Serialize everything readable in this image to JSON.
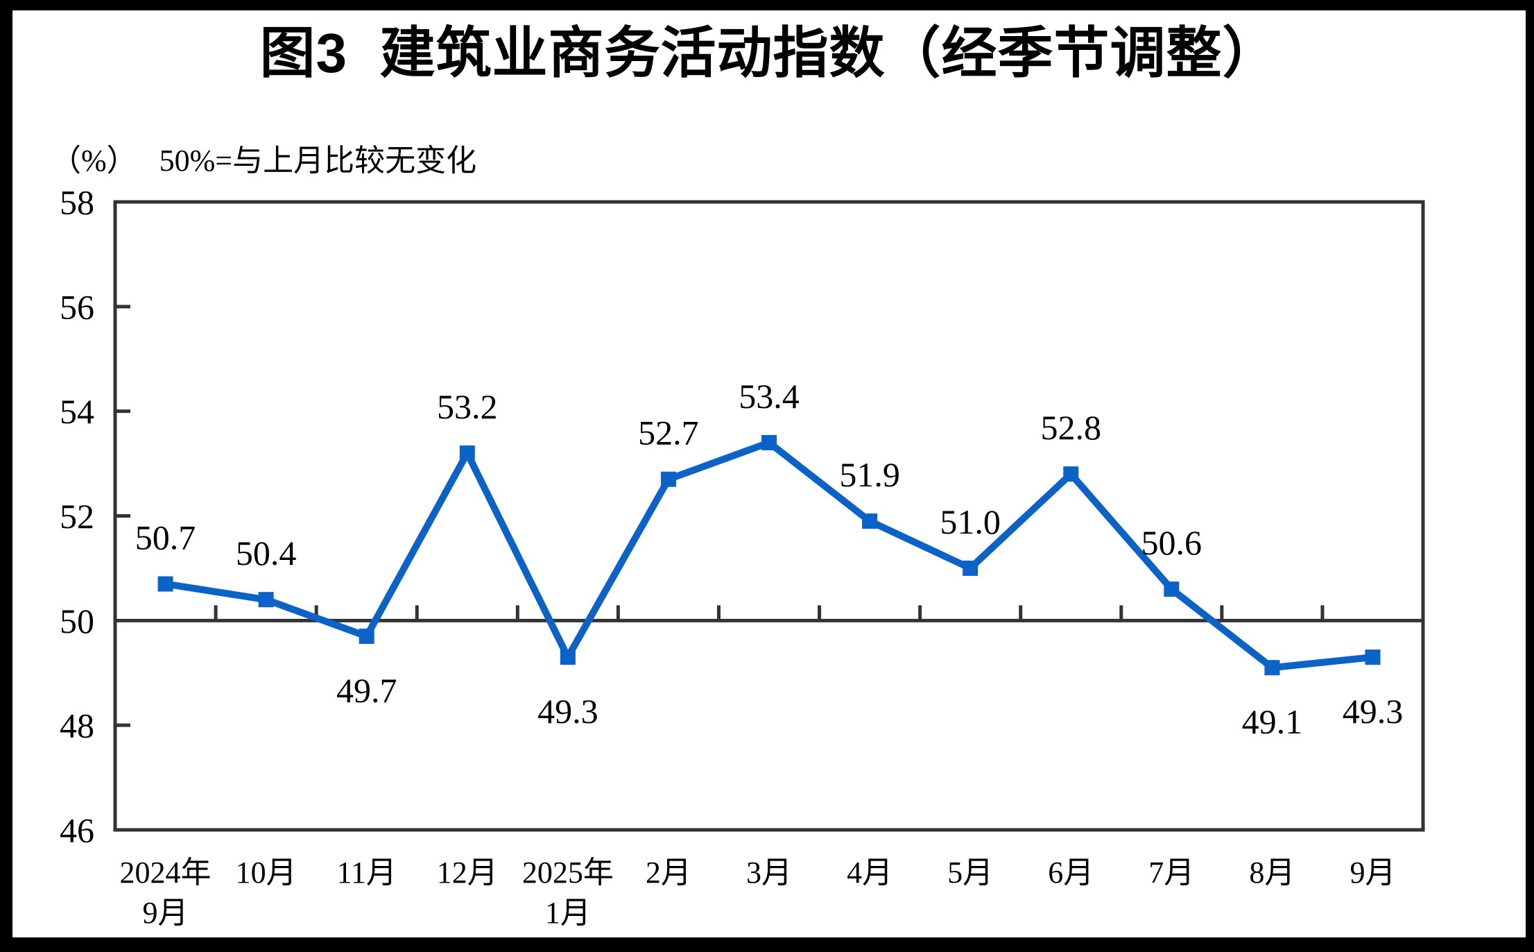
{
  "chart_data": {
    "type": "line",
    "title": "图3  建筑业商务活动指数（经季节调整）",
    "unit_label": "（%）",
    "note": "50%=与上月比较无变化",
    "series_name": "建筑业商务活动指数",
    "categories": [
      [
        "2024年",
        "9月"
      ],
      [
        "10月"
      ],
      [
        "11月"
      ],
      [
        "12月"
      ],
      [
        "2025年",
        "1月"
      ],
      [
        "2月"
      ],
      [
        "3月"
      ],
      [
        "4月"
      ],
      [
        "5月"
      ],
      [
        "6月"
      ],
      [
        "7月"
      ],
      [
        "8月"
      ],
      [
        "9月"
      ]
    ],
    "values": [
      50.7,
      50.4,
      49.7,
      53.2,
      49.3,
      52.7,
      53.4,
      51.9,
      51.0,
      52.8,
      50.6,
      49.1,
      49.3
    ],
    "data_labels": [
      "50.7",
      "50.4",
      "49.7",
      "53.2",
      "49.3",
      "52.7",
      "53.4",
      "51.9",
      "51.0",
      "52.8",
      "50.6",
      "49.1",
      "49.3"
    ],
    "ylim": [
      46,
      58
    ],
    "yticks": [
      46,
      48,
      50,
      52,
      54,
      56,
      58
    ],
    "baseline_value": 50,
    "grid": "off",
    "legend": "none",
    "marker": "square",
    "colors": {
      "line": "#0B62C8",
      "marker": "#0B62C8",
      "axis": "#333333",
      "text": "#000000",
      "background": "#FFFFFF",
      "page_border": "#000000"
    }
  }
}
